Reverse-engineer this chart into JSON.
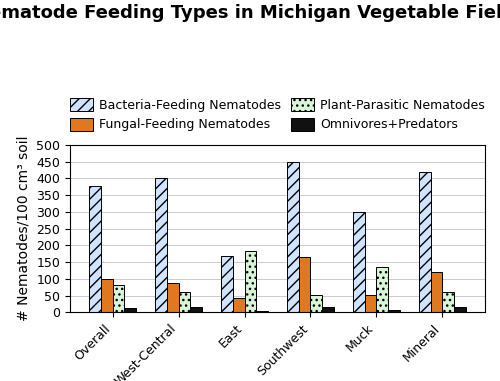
{
  "title": "Nematode Feeding Types in Michigan Vegetable Fields",
  "ylabel": "# Nematodes/100 cm³ soil",
  "categories": [
    "Overall",
    "West-Central",
    "East",
    "Southwest",
    "Muck",
    "Mineral"
  ],
  "series": {
    "Bacteria-Feeding Nematodes": [
      378,
      402,
      168,
      448,
      300,
      418
    ],
    "Fungal-Feeding Nematodes": [
      100,
      88,
      42,
      165,
      52,
      122
    ],
    "Plant-Parasitic Nematodes": [
      83,
      60,
      183,
      52,
      135,
      60
    ],
    "Omnivores+Predators": [
      14,
      17,
      5,
      15,
      6,
      17
    ]
  },
  "colors": {
    "Bacteria-Feeding Nematodes": "#d0e4ff",
    "Fungal-Feeding Nematodes": "#e07820",
    "Plant-Parasitic Nematodes": "#d8f5d8",
    "Omnivores+Predators": "#111111"
  },
  "hatches": {
    "Bacteria-Feeding Nematodes": "///",
    "Fungal-Feeding Nematodes": "",
    "Plant-Parasitic Nematodes": "...",
    "Omnivores+Predators": ""
  },
  "ylim": [
    0,
    500
  ],
  "yticks": [
    0,
    50,
    100,
    150,
    200,
    250,
    300,
    350,
    400,
    450,
    500
  ],
  "bar_width": 0.18,
  "background_color": "#ffffff",
  "title_fontsize": 13,
  "axis_label_fontsize": 10,
  "tick_fontsize": 9,
  "legend_fontsize": 9
}
